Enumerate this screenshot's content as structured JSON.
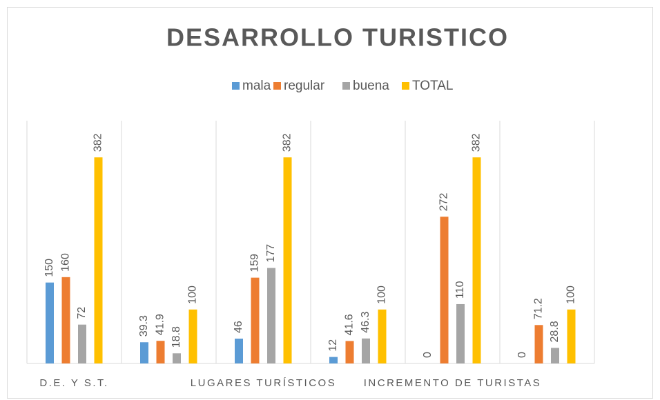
{
  "chart_data": {
    "type": "bar",
    "title": "DESARROLLO TURISTICO",
    "categories": [
      "D.E. Y S.T.",
      null,
      "LUGARES TURÍSTICOS",
      null,
      "INCREMENTO DE TURISTAS",
      null
    ],
    "series": [
      {
        "name": "mala",
        "color": "#5b9bd5",
        "values": [
          150,
          39.3,
          46,
          12,
          0,
          0
        ]
      },
      {
        "name": "regular",
        "color": "#ed7d31",
        "values": [
          160,
          41.9,
          159,
          41.6,
          272,
          71.2
        ]
      },
      {
        "name": "buena",
        "color": "#a5a5a5",
        "values": [
          72,
          18.8,
          177,
          46.3,
          110,
          28.8
        ]
      },
      {
        "name": "TOTAL",
        "color": "#ffc000",
        "values": [
          382,
          100,
          382,
          100,
          382,
          100
        ]
      }
    ],
    "ylim": [
      0,
      450
    ],
    "legend": "top"
  }
}
